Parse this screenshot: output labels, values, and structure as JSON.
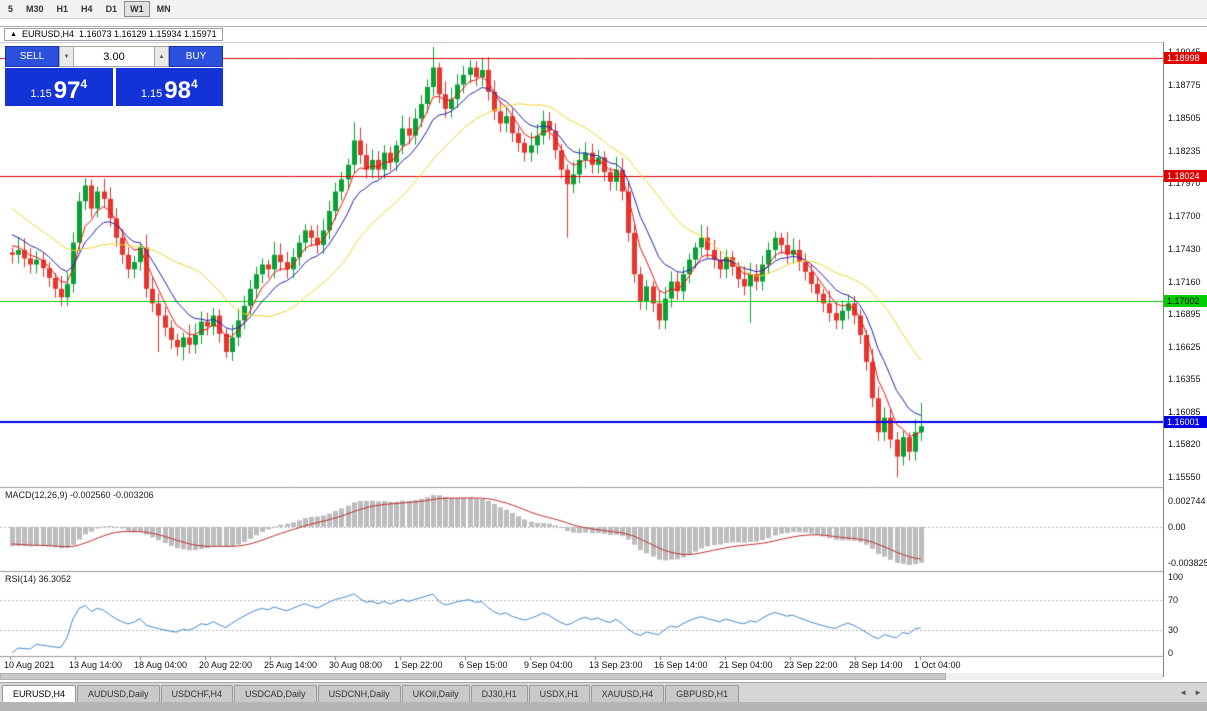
{
  "toolbar": {
    "periods": [
      {
        "label": "5"
      },
      {
        "label": "M30"
      },
      {
        "label": "H1"
      },
      {
        "label": "H4"
      },
      {
        "label": "D1"
      },
      {
        "label": "W1",
        "active": true
      },
      {
        "label": "MN"
      }
    ]
  },
  "icons": {
    "chart": "▲",
    "volume_down": "▼",
    "volume_up": "▲",
    "tab_scroll_left": "◄",
    "tab_scroll_right": "►"
  },
  "one_click": {
    "sell_label": "SELL",
    "buy_label": "BUY",
    "volume": "3.00",
    "sell_price_prefix": "1.15",
    "sell_price_big": "97",
    "sell_price_sup": "4",
    "buy_price_prefix": "1.15",
    "buy_price_big": "98",
    "buy_price_sup": "4"
  },
  "tabs": {
    "items": [
      "EURUSD,H4",
      "AUDUSD,Daily",
      "USDCHF,H4",
      "USDCAD,Daily",
      "USDCNH,Daily",
      "UKOil,Daily",
      "DJ30,H1",
      "USDX,H1",
      "XAUUSD,H4",
      "GBPUSD,H1"
    ],
    "active_index": 0
  },
  "chart_data": {
    "type": "candlestick",
    "title": "EURUSD,H4",
    "ohlc_display": "1.16073 1.16129 1.15934 1.15971",
    "price_axis_labels": [
      "1.19045",
      "1.18775",
      "1.18505",
      "1.18235",
      "1.17970",
      "1.17700",
      "1.17430",
      "1.17160",
      "1.16895",
      "1.16625",
      "1.16355",
      "1.16085",
      "1.15820",
      "1.15550"
    ],
    "time_labels": [
      "10 Aug 2021",
      "13 Aug 14:00",
      "18 Aug 04:00",
      "20 Aug 22:00",
      "25 Aug 14:00",
      "30 Aug 08:00",
      "1 Sep 22:00",
      "6 Sep 15:00",
      "9 Sep 04:00",
      "13 Sep 23:00",
      "16 Sep 14:00",
      "21 Sep 04:00",
      "23 Sep 22:00",
      "28 Sep 14:00",
      "1 Oct 04:00"
    ],
    "price_range": {
      "top": 1.1913,
      "bottom": 1.1547
    },
    "first_open": 1.174,
    "warmup_closes": [
      1.1832,
      1.1825,
      1.1819,
      1.1812,
      1.1806,
      1.18,
      1.1795,
      1.179,
      1.1786,
      1.1781,
      1.1777,
      1.1773,
      1.1769,
      1.1765,
      1.1762,
      1.1758,
      1.1755,
      1.1752,
      1.1749,
      1.1746,
      1.1743
    ],
    "closes": [
      1.1738,
      1.1742,
      1.1735,
      1.173,
      1.1734,
      1.1727,
      1.1719,
      1.171,
      1.1703,
      1.1714,
      1.1748,
      1.1782,
      1.1795,
      1.1776,
      1.179,
      1.1784,
      1.1768,
      1.1752,
      1.1738,
      1.1726,
      1.1732,
      1.1744,
      1.171,
      1.1698,
      1.1688,
      1.1678,
      1.1668,
      1.1662,
      1.167,
      1.1664,
      1.1672,
      1.1683,
      1.1679,
      1.1688,
      1.1673,
      1.1658,
      1.167,
      1.1684,
      1.1696,
      1.171,
      1.1722,
      1.173,
      1.1726,
      1.1738,
      1.1732,
      1.1726,
      1.1736,
      1.1748,
      1.1758,
      1.1752,
      1.1746,
      1.1758,
      1.1774,
      1.179,
      1.18,
      1.1812,
      1.1832,
      1.182,
      1.1808,
      1.1816,
      1.1808,
      1.1822,
      1.1814,
      1.1828,
      1.1842,
      1.1836,
      1.185,
      1.1862,
      1.1876,
      1.1892,
      1.187,
      1.1858,
      1.1866,
      1.1878,
      1.1886,
      1.1892,
      1.1884,
      1.189,
      1.1872,
      1.1856,
      1.1846,
      1.1852,
      1.1838,
      1.183,
      1.1822,
      1.1828,
      1.1836,
      1.1848,
      1.184,
      1.1824,
      1.1808,
      1.1796,
      1.1804,
      1.1816,
      1.1822,
      1.1812,
      1.1818,
      1.1806,
      1.1798,
      1.1808,
      1.179,
      1.1756,
      1.1722,
      1.17,
      1.1712,
      1.1698,
      1.1684,
      1.1702,
      1.1716,
      1.1708,
      1.1722,
      1.1734,
      1.1744,
      1.1752,
      1.1742,
      1.1734,
      1.1726,
      1.1736,
      1.1728,
      1.1718,
      1.1712,
      1.1722,
      1.1716,
      1.173,
      1.1742,
      1.1752,
      1.1746,
      1.1738,
      1.1742,
      1.1732,
      1.1724,
      1.1714,
      1.1706,
      1.1698,
      1.169,
      1.1684,
      1.1692,
      1.1698,
      1.1688,
      1.1672,
      1.165,
      1.162,
      1.1592,
      1.1604,
      1.1586,
      1.1572,
      1.1588,
      1.1576,
      1.1592,
      1.1597
    ],
    "wick_overrides": {
      "12": {
        "h": 1.1801
      },
      "24": {
        "l": 1.1658
      },
      "28": {
        "l": 1.1651
      },
      "35": {
        "l": 1.1653
      },
      "56": {
        "h": 1.1847
      },
      "69": {
        "h": 1.1909
      },
      "77": {
        "h": 1.19
      },
      "91": {
        "l": 1.1752
      },
      "121": {
        "l": 1.1682
      },
      "145": {
        "l": 1.1555
      },
      "149": {
        "h": 1.1616
      }
    },
    "candle_up_color": "#09A134",
    "candle_down_color": "#E8352E",
    "h_lines": [
      {
        "price": 1.18998,
        "label": "1.18998",
        "color": "#E00000",
        "width": 1,
        "badge_text_color": "#ffffff"
      },
      {
        "price": 1.18024,
        "label": "1.18024",
        "color": "#E00000",
        "width": 1,
        "badge_text_color": "#ffffff"
      },
      {
        "price": 1.17002,
        "label": "1.17002",
        "color": "#00CC00",
        "width": 1,
        "badge_text_color": "#000000"
      },
      {
        "price": 1.16001,
        "label": "1.16001",
        "color": "#0000E6",
        "width": 2,
        "badge_text_color": "#ffffff"
      }
    ],
    "moving_averages": [
      {
        "period": 5,
        "type": "ema",
        "color": "#EE1111"
      },
      {
        "period": 10,
        "type": "ema",
        "color": "#2020B0"
      },
      {
        "period": 21,
        "type": "sma",
        "color": "#EFD52B"
      }
    ],
    "macd": {
      "label": "MACD(12,26,9) -0.002560 -0.003206",
      "fast": 12,
      "slow": 26,
      "signal": 9,
      "values": [
        -0.00256,
        -0.003206
      ],
      "axis_labels": [
        "0.002744",
        "0.00",
        "-0.003825"
      ],
      "histogram_color": "#BDBDBD",
      "signal_color": "#C03030"
    },
    "rsi": {
      "label": "RSI(14) 36.3052",
      "period": 14,
      "value": 36.3052,
      "axis_labels": [
        "100",
        "70",
        "30",
        "0"
      ],
      "levels": [
        70,
        30
      ],
      "color": "#4488CC"
    }
  }
}
